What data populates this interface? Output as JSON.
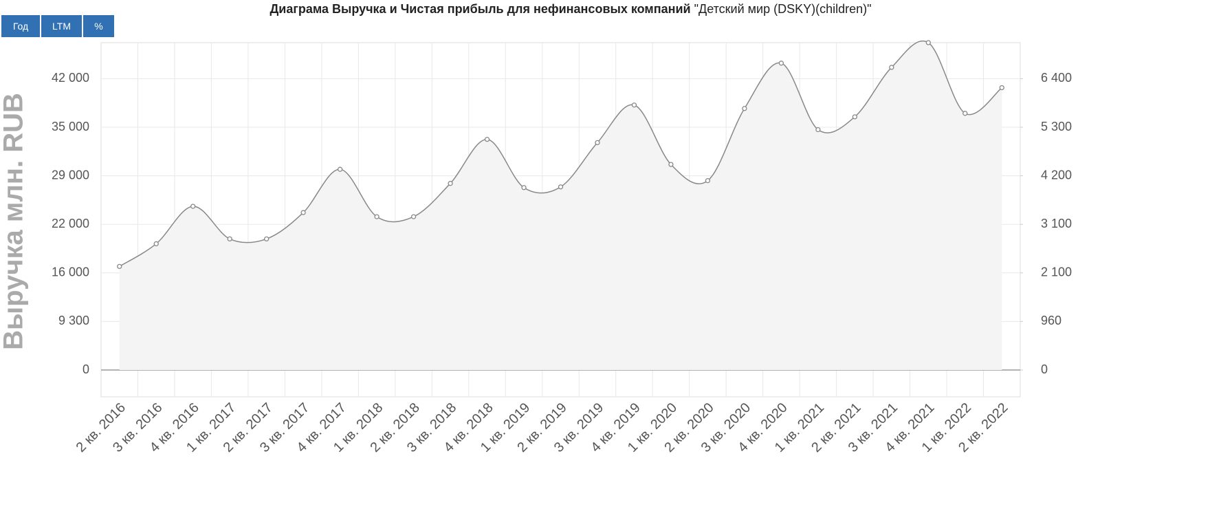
{
  "buttons": [
    "Год",
    "LTM",
    "%"
  ],
  "chart_data": {
    "type": "line",
    "title": "Диаграма Выручка и Чистая прибыль для нефинансовых компаний",
    "subtitle": "\"Детский мир (DSKY)(children)\"",
    "ylabel": "Выручка млн. RUB",
    "categories": [
      "2 кв. 2016",
      "3 кв. 2016",
      "4 кв. 2016",
      "1 кв. 2017",
      "2 кв. 2017",
      "3 кв. 2017",
      "4 кв. 2017",
      "1 кв. 2018",
      "2 кв. 2018",
      "3 кв. 2018",
      "4 кв. 2018",
      "1 кв. 2019",
      "2 кв. 2019",
      "3 кв. 2019",
      "4 кв. 2019",
      "1 кв. 2020",
      "2 кв. 2020",
      "3 кв. 2020",
      "4 кв. 2020",
      "1 кв. 2021",
      "2 кв. 2021",
      "3 кв. 2021",
      "4 кв. 2021",
      "1 кв. 2022",
      "2 кв. 2022"
    ],
    "series": [
      {
        "color": "#888888",
        "fill": "#f4f4f4",
        "values": [
          16800,
          19600,
          24600,
          20200,
          20200,
          23700,
          29800,
          23100,
          23100,
          27900,
          33500,
          27300,
          27400,
          33100,
          38200,
          30400,
          28300,
          37700,
          44200,
          34700,
          36500,
          43600,
          47100,
          37000,
          40700
        ]
      }
    ],
    "ylim": [
      -5200,
      47100
    ],
    "yticks": [
      0,
      {
        "value": 9300,
        "label": "9 300"
      },
      {
        "value": 16000,
        "label": "16 000"
      },
      {
        "value": 22000,
        "label": "22 000"
      },
      {
        "value": 29000,
        "label": "29 000"
      },
      {
        "value": 35000,
        "label": "35 000"
      },
      {
        "value": 42000,
        "label": "42 000"
      }
    ],
    "y2lim": [
      -530,
      7200
    ],
    "y2ticks": [
      0,
      960,
      {
        "value": 2100,
        "label": "2 100"
      },
      {
        "value": 3100,
        "label": "3 100"
      },
      {
        "value": 4200,
        "label": "4 200"
      },
      {
        "value": 5300,
        "label": "5 300"
      },
      {
        "value": 6400,
        "label": "6 400"
      }
    ],
    "grid": true
  }
}
